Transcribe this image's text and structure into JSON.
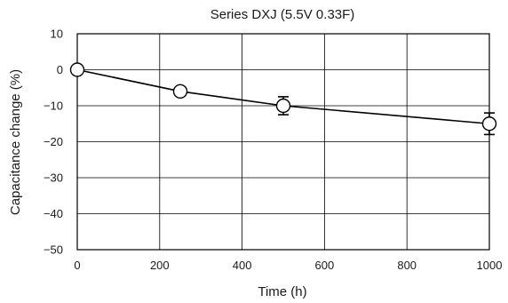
{
  "chart_data": {
    "type": "line",
    "title": "Series DXJ (5.5V 0.33F)",
    "xlabel": "Time (h)",
    "ylabel": "Capacitance change (%)",
    "xlim": [
      0,
      1000
    ],
    "ylim": [
      -50,
      10
    ],
    "x_ticks": [
      0,
      200,
      400,
      600,
      800,
      1000
    ],
    "y_ticks": [
      10,
      0,
      -10,
      -20,
      -30,
      -40,
      -50
    ],
    "x_tick_labels": [
      "0",
      "200",
      "400",
      "600",
      "800",
      "1000"
    ],
    "y_tick_labels": [
      "10",
      "0",
      "−10",
      "−20",
      "−30",
      "−40",
      "−50"
    ],
    "grid": true,
    "series": [
      {
        "x": [
          0,
          250,
          500,
          1000
        ],
        "y": [
          0,
          -6,
          -10,
          -15
        ],
        "error_low": [
          0,
          0,
          2.5,
          3
        ],
        "error_high": [
          0,
          0,
          2.5,
          3
        ]
      }
    ],
    "colors": {
      "line": "#000000",
      "marker_fill": "#ffffff",
      "grid": "#000000"
    }
  }
}
